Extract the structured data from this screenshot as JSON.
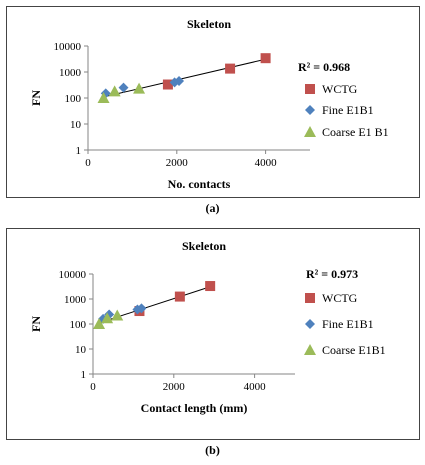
{
  "chart_data": [
    {
      "type": "scatter",
      "id": "a",
      "title": "Skeleton",
      "xlabel": "No. contacts",
      "ylabel": "FN",
      "xlim": [
        0,
        5000
      ],
      "ylim": [
        1,
        10000
      ],
      "yscale": "log",
      "xticks": [
        "0",
        "2000",
        "4000"
      ],
      "yticks": [
        "1",
        "10",
        "100",
        "1000",
        "10000"
      ],
      "annotation": "R² = 0.968",
      "legend_position": "right",
      "grid": false,
      "series": [
        {
          "name": "WCTG",
          "marker": "square",
          "color": "#c0504d",
          "points": [
            [
              1800,
              330
            ],
            [
              3200,
              1350
            ],
            [
              4000,
              3400
            ]
          ]
        },
        {
          "name": "Fine E1B1",
          "marker": "diamond",
          "color": "#4f81bd",
          "points": [
            [
              400,
              150
            ],
            [
              800,
              250
            ],
            [
              1950,
              400
            ],
            [
              2050,
              450
            ]
          ]
        },
        {
          "name": "Coarse E1 B1",
          "marker": "triangle",
          "color": "#9bbb59",
          "points": [
            [
              350,
              100
            ],
            [
              600,
              180
            ],
            [
              1150,
              230
            ]
          ]
        }
      ],
      "trendline": {
        "from": [
          350,
          110
        ],
        "to": [
          4000,
          3100
        ]
      },
      "caption": "(a)"
    },
    {
      "type": "scatter",
      "id": "b",
      "title": "Skeleton",
      "xlabel": "Contact length  (mm)",
      "ylabel": "FN",
      "xlim": [
        0,
        5000
      ],
      "ylim": [
        1,
        10000
      ],
      "yscale": "log",
      "xticks": [
        "0",
        "2000",
        "4000"
      ],
      "yticks": [
        "1",
        "10",
        "100",
        "1000",
        "10000"
      ],
      "annotation": "R² = 0.973",
      "legend_position": "right",
      "grid": false,
      "series": [
        {
          "name": "WCTG",
          "marker": "square",
          "color": "#c0504d",
          "points": [
            [
              1150,
              330
            ],
            [
              2150,
              1250
            ],
            [
              2900,
              3300
            ]
          ]
        },
        {
          "name": "Fine E1B1",
          "marker": "diamond",
          "color": "#4f81bd",
          "points": [
            [
              250,
              160
            ],
            [
              400,
              240
            ],
            [
              1100,
              380
            ],
            [
              1200,
              420
            ]
          ]
        },
        {
          "name": "Coarse E1B1",
          "marker": "triangle",
          "color": "#9bbb59",
          "points": [
            [
              150,
              100
            ],
            [
              350,
              170
            ],
            [
              600,
              220
            ]
          ]
        }
      ],
      "trendline": {
        "from": [
          150,
          110
        ],
        "to": [
          2900,
          3100
        ]
      },
      "caption": "(b)"
    }
  ]
}
